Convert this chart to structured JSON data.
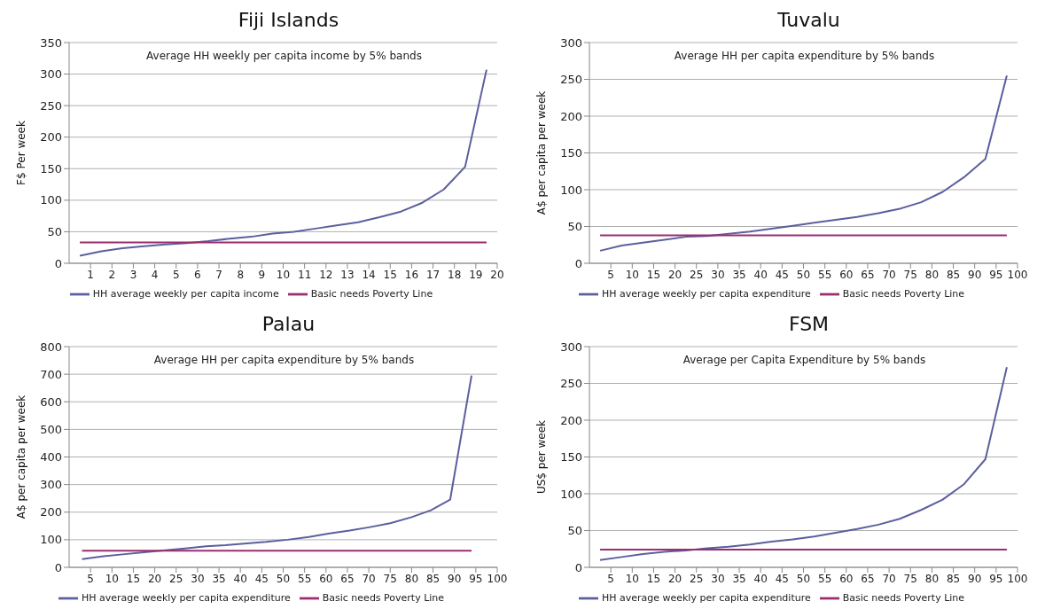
{
  "chart_data": [
    {
      "type": "line",
      "title": "Fiji Islands",
      "subtitle": "Average HH weekly per capita income by 5% bands",
      "ylabel": "F$ Per week",
      "xlim": [
        0,
        20
      ],
      "xticks": [
        1,
        2,
        3,
        4,
        5,
        6,
        7,
        8,
        9,
        10,
        11,
        12,
        13,
        14,
        15,
        16,
        17,
        18,
        19,
        20
      ],
      "ylim": [
        0,
        350
      ],
      "yticks": [
        0,
        50,
        100,
        150,
        200,
        250,
        300,
        350
      ],
      "grid": "y",
      "legend": "bottom",
      "marker": "none",
      "series": [
        {
          "name": "HH average weekly per capita income",
          "color": "#5b5f9e",
          "x": [
            0.5,
            1.5,
            2.5,
            3.5,
            4.5,
            5.5,
            6.5,
            7.5,
            8.5,
            9.5,
            10.5,
            11.5,
            12.5,
            13.5,
            14.5,
            15.5,
            16.5,
            17.5,
            18.5,
            19.5
          ],
          "values": [
            12,
            19,
            24,
            27,
            30,
            32,
            35,
            39,
            42,
            47,
            50,
            55,
            60,
            65,
            73,
            82,
            96,
            117,
            153,
            307
          ]
        },
        {
          "name": "Basic needs Poverty Line",
          "color": "#9b2d6e",
          "x": [
            0.5,
            19.5
          ],
          "values": [
            33,
            33
          ]
        }
      ]
    },
    {
      "type": "line",
      "title": "Tuvalu",
      "subtitle": "Average HH per capita expenditure by 5% bands",
      "ylabel": "A$ per capita per week",
      "xlim": [
        0,
        100
      ],
      "xticks": [
        5,
        10,
        15,
        20,
        25,
        30,
        35,
        40,
        45,
        50,
        55,
        60,
        65,
        70,
        75,
        80,
        85,
        90,
        95,
        100
      ],
      "ylim": [
        0,
        300
      ],
      "yticks": [
        0,
        50,
        100,
        150,
        200,
        250,
        300
      ],
      "grid": "y",
      "legend": "bottom",
      "marker": "none",
      "series": [
        {
          "name": "HH average weekly per capita expenditure",
          "color": "#5b5f9e",
          "x": [
            2.5,
            7.5,
            12.5,
            17.5,
            22.5,
            27.5,
            32.5,
            37.5,
            42.5,
            47.5,
            52.5,
            57.5,
            62.5,
            67.5,
            72.5,
            77.5,
            82.5,
            87.5,
            92.5,
            97.5
          ],
          "values": [
            17,
            24,
            28,
            32,
            36,
            37,
            40,
            43,
            47,
            51,
            55,
            59,
            63,
            68,
            74,
            83,
            97,
            117,
            142,
            255
          ]
        },
        {
          "name": "Basic needs Poverty Line",
          "color": "#9b2d6e",
          "x": [
            2.5,
            97.5
          ],
          "values": [
            38,
            38
          ]
        }
      ]
    },
    {
      "type": "line",
      "title": "Palau",
      "subtitle": "Average HH per capita expenditure by 5% bands",
      "ylabel": "A$ per capita per week",
      "xlim": [
        0,
        100
      ],
      "xticks": [
        5,
        10,
        15,
        20,
        25,
        30,
        35,
        40,
        45,
        50,
        55,
        60,
        65,
        70,
        75,
        80,
        85,
        90,
        95,
        100
      ],
      "ylim": [
        0,
        800
      ],
      "yticks": [
        0,
        100,
        200,
        300,
        400,
        500,
        600,
        700,
        800
      ],
      "grid": "y",
      "legend": "bottom",
      "marker": "none",
      "series": [
        {
          "name": "HH average weekly per capita expenditure",
          "color": "#5b5f9e",
          "x": [
            3,
            8,
            12.5,
            17.5,
            22,
            27,
            32,
            36.5,
            41.5,
            46,
            51,
            56,
            60.5,
            65.5,
            70,
            75,
            80,
            84.5,
            89,
            94
          ],
          "values": [
            30,
            40,
            47,
            55,
            61,
            68,
            76,
            80,
            87,
            92,
            100,
            110,
            122,
            133,
            145,
            160,
            182,
            207,
            245,
            695
          ]
        },
        {
          "name": "Basic needs Poverty Line",
          "color": "#9b2d6e",
          "x": [
            3,
            94
          ],
          "values": [
            60,
            60
          ]
        }
      ]
    },
    {
      "type": "line",
      "title": "FSM",
      "subtitle": "Average per Capita Expenditure by 5% bands",
      "ylabel": "US$ per week",
      "xlim": [
        0,
        100
      ],
      "xticks": [
        5,
        10,
        15,
        20,
        25,
        30,
        35,
        40,
        45,
        50,
        55,
        60,
        65,
        70,
        75,
        80,
        85,
        90,
        95,
        100
      ],
      "ylim": [
        0,
        300
      ],
      "yticks": [
        0,
        50,
        100,
        150,
        200,
        250,
        300
      ],
      "grid": "y",
      "legend": "bottom",
      "marker": "none",
      "series": [
        {
          "name": "HH average weekly per capita expenditure",
          "color": "#5b5f9e",
          "x": [
            2.5,
            7.5,
            12.5,
            17.5,
            22.5,
            27.5,
            32.5,
            37.5,
            42.5,
            47.5,
            52.5,
            57.5,
            62.5,
            67.5,
            72.5,
            77.5,
            82.5,
            87.5,
            92.5,
            97.5
          ],
          "values": [
            10,
            14,
            18,
            21,
            23,
            26,
            28,
            31,
            35,
            38,
            42,
            47,
            52,
            58,
            66,
            78,
            92,
            113,
            147,
            272
          ]
        },
        {
          "name": "Basic needs Poverty Line",
          "color": "#9b2d6e",
          "x": [
            2.5,
            97.5
          ],
          "values": [
            24,
            24
          ]
        }
      ]
    }
  ]
}
